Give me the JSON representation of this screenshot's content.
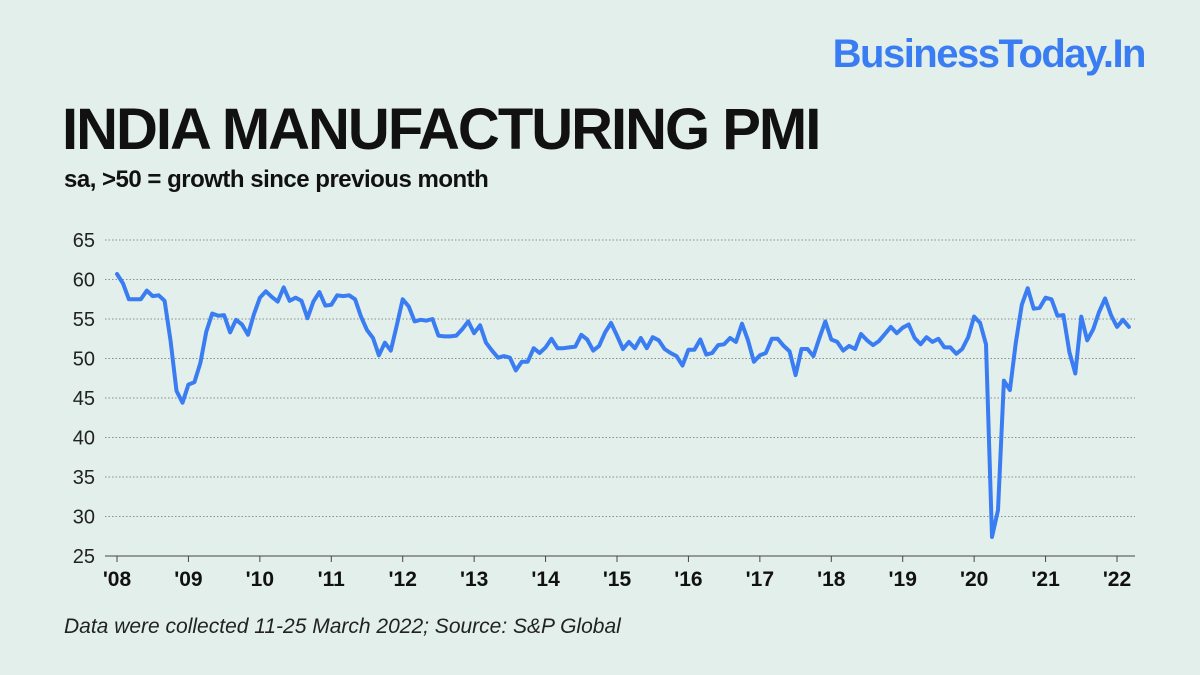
{
  "brand": "BusinessToday.In",
  "title": "INDIA MANUFACTURING PMI",
  "subtitle": "sa, >50 = growth since previous month",
  "source": "Data were collected 11-25 March 2022; Source: S&P Global",
  "colors": {
    "background": "#e3efea",
    "line": "#3a7cf2",
    "brand": "#3a7cf2"
  },
  "chart_data": {
    "type": "line",
    "title": "INDIA MANUFACTURING PMI",
    "subtitle": "sa, >50 = growth since previous month",
    "x_start": "2008-01",
    "x_end": "2022-03",
    "frequency": "monthly",
    "ylim": [
      25,
      65
    ],
    "yticks": [
      25,
      30,
      35,
      40,
      45,
      50,
      55,
      60,
      65
    ],
    "xticks": [
      "'08",
      "'09",
      "'10",
      "'11",
      "'12",
      "'13",
      "'14",
      "'15",
      "'16",
      "'17",
      "'18",
      "'19",
      "'20",
      "'21",
      "'22"
    ],
    "grid": true,
    "series": [
      {
        "values": [
          60.7,
          59.5,
          57.5,
          57.5,
          57.5,
          58.6,
          57.9,
          58.0,
          57.3,
          52.2,
          45.9,
          44.4,
          46.7,
          47.0,
          49.4,
          53.4,
          55.7,
          55.4,
          55.5,
          53.3,
          54.9,
          54.3,
          53.0,
          55.6,
          57.7,
          58.5,
          57.8,
          57.2,
          59.0,
          57.3,
          57.7,
          57.3,
          55.1,
          57.2,
          58.4,
          56.7,
          56.8,
          58.0,
          57.9,
          58.0,
          57.5,
          55.3,
          53.6,
          52.6,
          50.4,
          52.0,
          51.0,
          54.2,
          57.5,
          56.6,
          54.7,
          54.9,
          54.8,
          55.0,
          52.9,
          52.8,
          52.8,
          52.9,
          53.7,
          54.7,
          53.2,
          54.2,
          52.0,
          51.0,
          50.1,
          50.3,
          50.1,
          48.5,
          49.6,
          49.6,
          51.3,
          50.7,
          51.4,
          52.5,
          51.3,
          51.3,
          51.4,
          51.5,
          53.0,
          52.4,
          51.0,
          51.6,
          53.3,
          54.5,
          52.9,
          51.2,
          52.1,
          51.3,
          52.6,
          51.3,
          52.7,
          52.3,
          51.2,
          50.7,
          50.3,
          49.1,
          51.1,
          51.1,
          52.4,
          50.5,
          50.7,
          51.7,
          51.8,
          52.6,
          52.1,
          54.4,
          52.3,
          49.6,
          50.4,
          50.7,
          52.5,
          52.5,
          51.6,
          50.9,
          47.9,
          51.2,
          51.2,
          50.3,
          52.6,
          54.7,
          52.4,
          52.1,
          51.0,
          51.6,
          51.2,
          53.1,
          52.3,
          51.7,
          52.2,
          53.1,
          54.0,
          53.2,
          53.9,
          54.3,
          52.6,
          51.8,
          52.7,
          52.1,
          52.5,
          51.4,
          51.4,
          50.6,
          51.2,
          52.7,
          55.3,
          54.5,
          51.8,
          27.4,
          30.8,
          47.2,
          46.0,
          52.0,
          56.8,
          58.9,
          56.3,
          56.4,
          57.7,
          57.5,
          55.4,
          55.5,
          50.8,
          48.1,
          55.3,
          52.3,
          53.7,
          55.9,
          57.6,
          55.5,
          54.0,
          54.9,
          54.0
        ]
      }
    ]
  }
}
